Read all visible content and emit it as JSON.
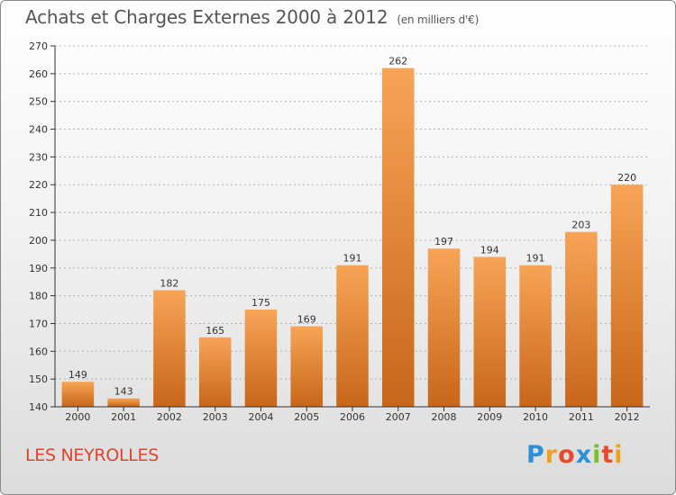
{
  "title": "Achats et Charges Externes 2000 à 2012",
  "unit": "(en milliers d'€)",
  "commune": "LES NEYROLLES",
  "brand": {
    "letters": [
      "P",
      "r",
      "o",
      "x",
      "i",
      "t",
      "i"
    ],
    "colors": [
      "#2f8fd6",
      "#f0a020",
      "#e84a2c",
      "#2f8fd6",
      "#7bbf2f",
      "#e84a2c",
      "#f0a020"
    ]
  },
  "colors": {
    "bar_top": "#f7a456",
    "bar_bottom": "#c8661a",
    "axis": "#333333",
    "grid": "#b0b0b0"
  },
  "chart_data": {
    "type": "bar",
    "categories": [
      "2000",
      "2001",
      "2002",
      "2003",
      "2004",
      "2005",
      "2006",
      "2007",
      "2008",
      "2009",
      "2010",
      "2011",
      "2012"
    ],
    "values": [
      149,
      143,
      182,
      165,
      175,
      169,
      191,
      262,
      197,
      194,
      191,
      203,
      220
    ],
    "ylim": [
      140,
      270
    ],
    "yticks": [
      140,
      150,
      160,
      170,
      180,
      190,
      200,
      210,
      220,
      230,
      240,
      250,
      260,
      270
    ],
    "grid": true,
    "xlabel": "",
    "ylabel": ""
  }
}
